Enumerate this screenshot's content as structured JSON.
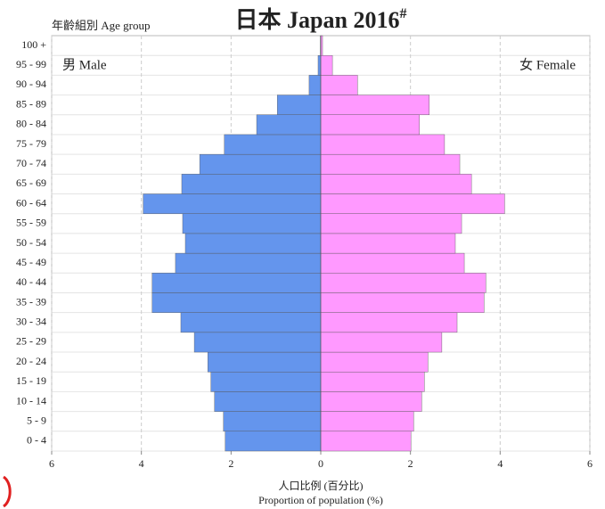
{
  "chart_data": {
    "type": "pyramid",
    "title": "日本 Japan 2016",
    "title_superscript": "#",
    "ylabel": "年齡組別 Age group",
    "xlabel": [
      "人口比例 (百分比)",
      "Proportion of population (%)"
    ],
    "categories": [
      "0 - 4",
      "5 - 9",
      "10 - 14",
      "15 - 19",
      "20 - 24",
      "25 - 29",
      "30 - 34",
      "35 - 39",
      "40 - 44",
      "45 - 49",
      "50 - 54",
      "55 - 59",
      "60 - 64",
      "65 - 69",
      "70 - 74",
      "75 - 79",
      "80 - 84",
      "85 - 89",
      "90 - 94",
      "95 - 99",
      "100 +"
    ],
    "series": [
      {
        "name": "男 Male",
        "color": "#6495ed",
        "values": [
          -2.13,
          -2.17,
          -2.37,
          -2.45,
          -2.52,
          -2.82,
          -3.12,
          -3.76,
          -3.76,
          -3.24,
          -3.02,
          -3.08,
          -3.96,
          -3.1,
          -2.7,
          -2.15,
          -1.43,
          -0.97,
          -0.26,
          -0.06,
          -0.01
        ]
      },
      {
        "name": "女 Female",
        "color": "#ff99ff",
        "values": [
          2.01,
          2.07,
          2.25,
          2.31,
          2.39,
          2.7,
          3.04,
          3.64,
          3.68,
          3.2,
          3.0,
          3.14,
          4.1,
          3.36,
          3.1,
          2.76,
          2.2,
          2.42,
          0.82,
          0.26,
          0.04
        ]
      }
    ],
    "xlim": [
      -6,
      6
    ],
    "xticks": [
      {
        "value": -6,
        "label": "6"
      },
      {
        "value": -4,
        "label": "4"
      },
      {
        "value": -2,
        "label": "2"
      },
      0,
      2,
      4,
      6
    ],
    "grid": true
  }
}
